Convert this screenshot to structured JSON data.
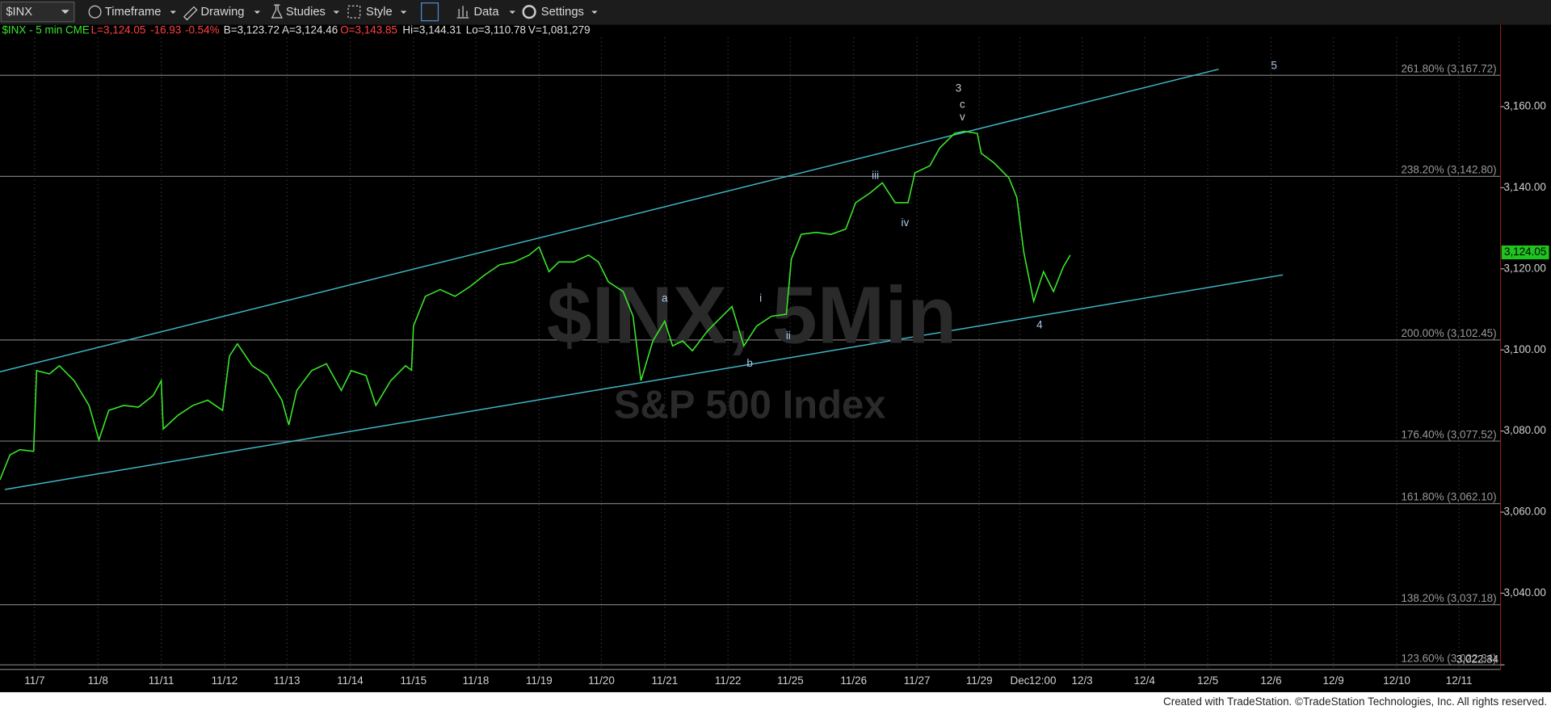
{
  "toolbar": {
    "symbol": "$INX",
    "items": [
      "Timeframe",
      "Drawing",
      "Studies",
      "Style",
      "Data",
      "Settings"
    ]
  },
  "chart_data": {
    "type": "line",
    "header": [
      "L=3,124.05",
      "-16.93",
      "-0.54%",
      "B=3,123.72",
      "A=3,124.46",
      "O=3,143.85",
      "Hi=3,144.31",
      "Lo=3,110.78",
      "V=1,081,279"
    ],
    "watermark": [
      "$INX, 5Min",
      "S&P 500 Index"
    ],
    "series": [
      {
        "name": "$INX - 5 min CME",
        "color": "#39e629",
        "values": [
          3068.0,
          3074.1,
          3075.4,
          3075.0,
          3094.9,
          3094.1,
          3096.1,
          3092.4,
          3086.3,
          3077.8,
          3085.1,
          3086.3,
          3085.9,
          3088.8,
          3092.4,
          3080.5,
          3083.9,
          3086.3,
          3087.6,
          3085.1,
          3098.5,
          3101.5,
          3096.1,
          3093.7,
          3087.6,
          3081.5,
          3090.0,
          3094.9,
          3096.6,
          3090.0,
          3094.9,
          3093.7,
          3086.3,
          3092.4,
          3096.1,
          3095.0,
          3105.9,
          3113.2,
          3114.9,
          3113.2,
          3115.6,
          3118.5,
          3121.0,
          3121.7,
          3123.4,
          3125.4,
          3119.3,
          3121.7,
          3121.7,
          3123.4,
          3121.7,
          3116.8,
          3114.4,
          3108.3,
          3092.4,
          3102.2,
          3107.1,
          3101.0,
          3102.2,
          3099.8,
          3104.6,
          3108.3,
          3110.7,
          3101.0,
          3105.9,
          3108.3,
          3108.8,
          3122.4,
          3128.5,
          3129.0,
          3128.5,
          3129.8,
          3136.3,
          3138.8,
          3141.2,
          3136.3,
          3136.3,
          3143.7,
          3145.4,
          3149.8,
          3153.4,
          3153.9,
          3153.4,
          3148.5,
          3146.1,
          3142.4,
          3137.6,
          3124.1,
          3112.0,
          3119.3,
          3114.4,
          3120.5,
          3123.4
        ]
      }
    ],
    "x_labels": [
      "11/7",
      "11/8",
      "11/11",
      "11/12",
      "11/13",
      "11/14",
      "11/15",
      "11/18",
      "11/19",
      "11/20",
      "11/21",
      "11/22",
      "11/25",
      "11/26",
      "11/27",
      "11/29",
      "Dec",
      "12:00",
      "12/3",
      "12/4",
      "12/5",
      "12/6",
      "12/9",
      "12/10",
      "12/11"
    ],
    "ylim": [
      3021.2,
      3180.2
    ],
    "yticks": [
      {
        "value": 3160,
        "label": "3,160.00"
      },
      {
        "value": 3140,
        "label": "3,140.00"
      },
      {
        "value": 3120,
        "label": "3,120.00"
      },
      {
        "value": 3100,
        "label": "3,100.00"
      },
      {
        "value": 3080,
        "label": "3,080.00"
      },
      {
        "value": 3060,
        "label": "3,060.00"
      },
      {
        "value": 3040,
        "label": "3,040.00"
      }
    ],
    "fib_levels": [
      {
        "value": 3167.72,
        "label": "261.80% (3,167.72)"
      },
      {
        "value": 3142.8,
        "label": "238.20% (3,142.80)"
      },
      {
        "value": 3102.45,
        "label": "200.00% (3,102.45)"
      },
      {
        "value": 3077.52,
        "label": "176.40% (3,077.52)"
      },
      {
        "value": 3062.1,
        "label": "161.80% (3,062.10)"
      },
      {
        "value": 3037.18,
        "label": "138.20% (3,037.18)"
      },
      {
        "value": 3022.34,
        "label": "123.60% (3,022.34)"
      }
    ],
    "last_price": {
      "value": 3124.05,
      "label": "3,124.05"
    },
    "low_marker": {
      "value": 3022.34,
      "label": "3,022.34"
    },
    "annotations": [
      {
        "text": "3",
        "color": "#c8c8c8"
      },
      {
        "text": "c",
        "color": "#c8c8c8"
      },
      {
        "text": "v",
        "color": "#c8c8c8"
      },
      {
        "text": "iii",
        "color": "#a9c8e8"
      },
      {
        "text": "iv",
        "color": "#a9c8e8"
      },
      {
        "text": "a",
        "color": "#a9c8e8"
      },
      {
        "text": "i",
        "color": "#a9c8e8"
      },
      {
        "text": "ii",
        "color": "#a9c8e8"
      },
      {
        "text": "b",
        "color": "#a9c8e8"
      },
      {
        "text": "4",
        "color": "#a9c8e8"
      },
      {
        "text": "5",
        "color": "#a9c8e8"
      }
    ]
  },
  "footer": "Created with TradeStation. ©TradeStation Technologies, Inc. All rights reserved."
}
